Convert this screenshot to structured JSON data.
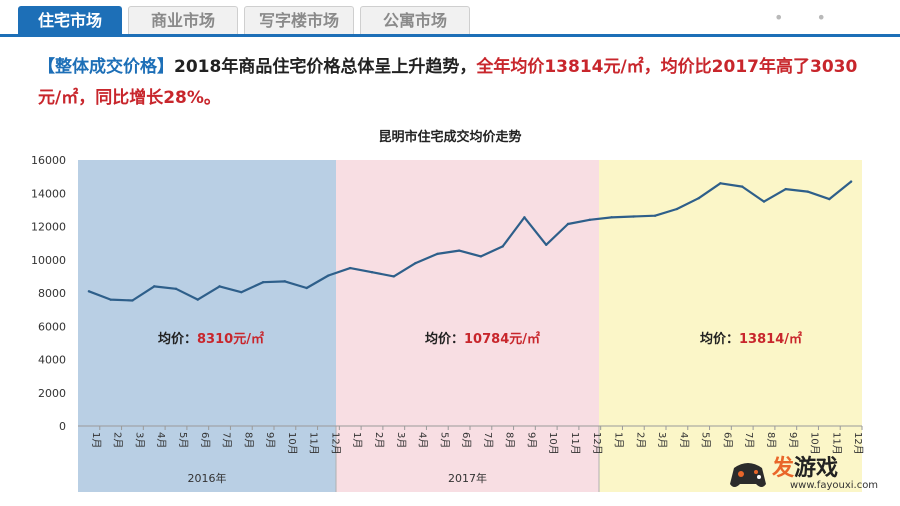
{
  "tabs": [
    {
      "label": "住宅市场",
      "active": true
    },
    {
      "label": "商业市场",
      "active": false
    },
    {
      "label": "写字楼市场",
      "active": false
    },
    {
      "label": "公寓市场",
      "active": false
    }
  ],
  "headline": {
    "tag": "【整体成交价格】",
    "lead": "2018年商品住宅价格总体呈上升趋势，",
    "red": "全年均价13814元/㎡",
    "mid": "，均价比2017年高了3030元/㎡，同比增长28%。"
  },
  "chart_data": {
    "type": "line",
    "title": "昆明市住宅成交均价走势",
    "ylim": [
      0,
      16000
    ],
    "yticks": [
      0,
      2000,
      4000,
      6000,
      8000,
      10000,
      12000,
      14000,
      16000
    ],
    "months": [
      "1月",
      "2月",
      "3月",
      "4月",
      "5月",
      "6月",
      "7月",
      "8月",
      "9月",
      "10月",
      "11月",
      "12月"
    ],
    "series": [
      {
        "name": "住宅成交均价",
        "color": "#2e5f8a",
        "values": [
          8100,
          7600,
          7550,
          8400,
          8250,
          7600,
          8400,
          8050,
          8650,
          8700,
          8300,
          9050,
          9500,
          9250,
          9000,
          9800,
          10350,
          10550,
          10200,
          10800,
          12550,
          10900,
          12150,
          12400,
          12550,
          12600,
          12650,
          13050,
          13700,
          14600,
          14400,
          13500,
          14250,
          14100,
          13650,
          14700
        ]
      }
    ],
    "groups": [
      {
        "year": "2016年",
        "avg_label": "均价：",
        "avg_value": "8310元/㎡",
        "color": "#b9cfe4"
      },
      {
        "year": "2017年",
        "avg_label": "均价：",
        "avg_value": "10784元/㎡",
        "color": "#f8dee3"
      },
      {
        "year": "",
        "avg_label": "均价：",
        "avg_value": "13814/㎡",
        "color": "#fbf6c8"
      }
    ]
  },
  "watermark": {
    "brand_a": "发",
    "brand_b": "游戏",
    "url": "www.fayouxi.com"
  }
}
